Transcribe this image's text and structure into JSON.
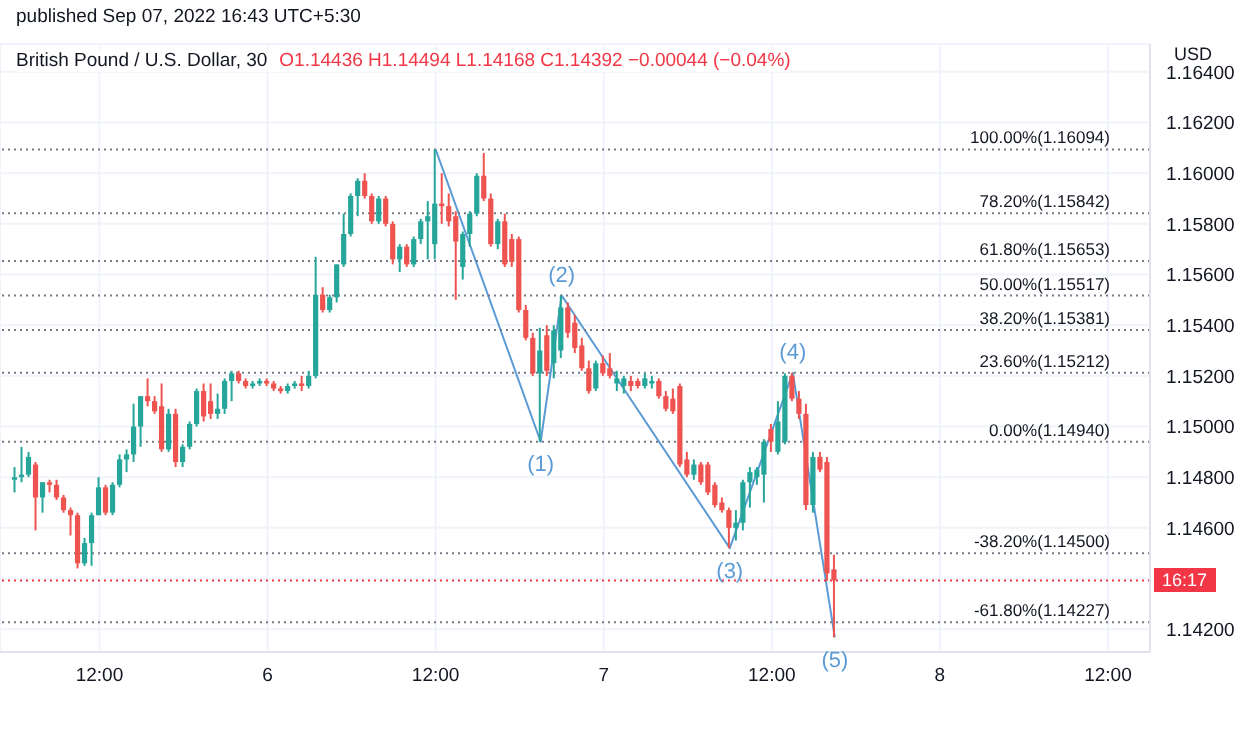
{
  "chart_data": {
    "type": "candlestick",
    "title": "British Pound / U.S. Dollar, 30",
    "subtitle": "O1.14436 H1.14494 L1.14168 C1.14392 −0.00044 (−0.04%)",
    "ylabel": "USD",
    "annotations": [
      "published Sep 07, 2022 16:43 UTC+5:30",
      {
        "text": "(1)",
        "x": "2022-09-06T19:30",
        "y": 1.1494
      },
      {
        "text": "(2)",
        "x": "2022-09-06T21:00",
        "y": 1.15517
      },
      {
        "text": "(3)",
        "x": "2022-09-07T09:00",
        "y": 1.1452
      },
      {
        "text": "(4)",
        "x": "2022-09-07T13:30",
        "y": 1.15212
      },
      {
        "text": "(5)",
        "x": "2022-09-07T16:30",
        "y": 1.14168
      },
      {
        "text": "16:17",
        "y": 1.14392
      }
    ],
    "x": [
      "2022-09-05T06:00",
      "2022-09-05T06:30",
      "2022-09-05T07:00",
      "2022-09-05T07:30",
      "2022-09-05T08:00",
      "2022-09-05T08:30",
      "2022-09-05T09:00",
      "2022-09-05T09:30",
      "2022-09-05T10:00",
      "2022-09-05T10:30",
      "2022-09-05T11:00",
      "2022-09-05T11:30",
      "2022-09-05T12:00",
      "2022-09-05T12:30",
      "2022-09-05T13:00",
      "2022-09-05T13:30",
      "2022-09-05T14:00",
      "2022-09-05T14:30",
      "2022-09-05T15:00",
      "2022-09-05T15:30",
      "2022-09-05T16:00",
      "2022-09-05T16:30",
      "2022-09-05T17:00",
      "2022-09-05T17:30",
      "2022-09-05T18:00",
      "2022-09-05T18:30",
      "2022-09-05T19:00",
      "2022-09-05T19:30",
      "2022-09-05T20:00",
      "2022-09-05T20:30",
      "2022-09-05T21:00",
      "2022-09-05T21:30",
      "2022-09-05T22:00",
      "2022-09-05T22:30",
      "2022-09-05T23:00",
      "2022-09-05T23:30",
      "2022-09-06T00:00",
      "2022-09-06T00:30",
      "2022-09-06T01:00",
      "2022-09-06T01:30",
      "2022-09-06T02:00",
      "2022-09-06T02:30",
      "2022-09-06T03:00",
      "2022-09-06T03:30",
      "2022-09-06T04:00",
      "2022-09-06T04:30",
      "2022-09-06T05:00",
      "2022-09-06T05:30",
      "2022-09-06T06:00",
      "2022-09-06T06:30",
      "2022-09-06T07:00",
      "2022-09-06T07:30",
      "2022-09-06T08:00",
      "2022-09-06T08:30",
      "2022-09-06T09:00",
      "2022-09-06T09:30",
      "2022-09-06T10:00",
      "2022-09-06T10:30",
      "2022-09-06T11:00",
      "2022-09-06T11:30",
      "2022-09-06T12:00",
      "2022-09-06T12:30",
      "2022-09-06T13:00",
      "2022-09-06T13:30",
      "2022-09-06T14:00",
      "2022-09-06T14:30",
      "2022-09-06T15:00",
      "2022-09-06T15:30",
      "2022-09-06T16:00",
      "2022-09-06T16:30",
      "2022-09-06T17:00",
      "2022-09-06T17:30",
      "2022-09-06T18:00",
      "2022-09-06T18:30",
      "2022-09-06T19:00",
      "2022-09-06T19:30",
      "2022-09-06T20:00",
      "2022-09-06T20:30",
      "2022-09-06T21:00",
      "2022-09-06T21:30",
      "2022-09-06T22:00",
      "2022-09-06T22:30",
      "2022-09-06T23:00",
      "2022-09-06T23:30",
      "2022-09-07T00:00",
      "2022-09-07T00:30",
      "2022-09-07T01:00",
      "2022-09-07T01:30",
      "2022-09-07T02:00",
      "2022-09-07T02:30",
      "2022-09-07T03:00",
      "2022-09-07T03:30",
      "2022-09-07T04:00",
      "2022-09-07T04:30",
      "2022-09-07T05:00",
      "2022-09-07T05:30",
      "2022-09-07T06:00",
      "2022-09-07T06:30",
      "2022-09-07T07:00",
      "2022-09-07T07:30",
      "2022-09-07T08:00",
      "2022-09-07T08:30",
      "2022-09-07T09:00",
      "2022-09-07T09:30",
      "2022-09-07T10:00",
      "2022-09-07T10:30",
      "2022-09-07T11:00",
      "2022-09-07T11:30",
      "2022-09-07T12:00",
      "2022-09-07T12:30",
      "2022-09-07T13:00",
      "2022-09-07T13:30",
      "2022-09-07T14:00",
      "2022-09-07T14:30",
      "2022-09-07T15:00",
      "2022-09-07T15:30",
      "2022-09-07T16:00",
      "2022-09-07T16:30"
    ],
    "ohlc": [
      [
        1.1479,
        1.1484,
        1.1474,
        1.148
      ],
      [
        1.148,
        1.1492,
        1.1478,
        1.1481
      ],
      [
        1.1481,
        1.149,
        1.148,
        1.1488
      ],
      [
        1.1485,
        1.1486,
        1.1459,
        1.1472
      ],
      [
        1.1472,
        1.1478,
        1.1466,
        1.1478
      ],
      [
        1.1478,
        1.1479,
        1.1474,
        1.1477
      ],
      [
        1.1477,
        1.1479,
        1.1471,
        1.1472
      ],
      [
        1.1472,
        1.1473,
        1.1466,
        1.1467
      ],
      [
        1.1467,
        1.1468,
        1.1457,
        1.1465
      ],
      [
        1.1465,
        1.1466,
        1.1444,
        1.1446
      ],
      [
        1.1446,
        1.1456,
        1.1445,
        1.1454
      ],
      [
        1.1454,
        1.1466,
        1.1445,
        1.1465
      ],
      [
        1.1465,
        1.148,
        1.1465,
        1.1476
      ],
      [
        1.1476,
        1.1477,
        1.1465,
        1.1466
      ],
      [
        1.1466,
        1.1478,
        1.1465,
        1.1477
      ],
      [
        1.1477,
        1.1489,
        1.1476,
        1.1487
      ],
      [
        1.1487,
        1.1491,
        1.1482,
        1.1489
      ],
      [
        1.1489,
        1.1509,
        1.1486,
        1.15
      ],
      [
        1.15,
        1.1512,
        1.1492,
        1.1512
      ],
      [
        1.1512,
        1.1519,
        1.1508,
        1.151
      ],
      [
        1.151,
        1.1512,
        1.1505,
        1.1506
      ],
      [
        1.1508,
        1.1517,
        1.149,
        1.1491
      ],
      [
        1.1491,
        1.1507,
        1.149,
        1.1505
      ],
      [
        1.1505,
        1.1507,
        1.1484,
        1.1486
      ],
      [
        1.1486,
        1.1493,
        1.1484,
        1.1492
      ],
      [
        1.1492,
        1.1502,
        1.1491,
        1.1501
      ],
      [
        1.1501,
        1.1515,
        1.15,
        1.1514
      ],
      [
        1.1514,
        1.1517,
        1.1502,
        1.1504
      ],
      [
        1.151,
        1.1517,
        1.1503,
        1.1505
      ],
      [
        1.1505,
        1.1513,
        1.1503,
        1.1507
      ],
      [
        1.1507,
        1.1519,
        1.1505,
        1.1518
      ],
      [
        1.1518,
        1.1522,
        1.151,
        1.1521
      ],
      [
        1.1521,
        1.1522,
        1.1517,
        1.1518
      ],
      [
        1.1518,
        1.1519,
        1.1515,
        1.1516
      ],
      [
        1.1516,
        1.1518,
        1.1515,
        1.1517
      ],
      [
        1.1517,
        1.1519,
        1.1516,
        1.1518
      ],
      [
        1.1518,
        1.1519,
        1.1516,
        1.1517
      ],
      [
        1.1517,
        1.1518,
        1.1514,
        1.1515
      ],
      [
        1.1515,
        1.1516,
        1.1513,
        1.1514
      ],
      [
        1.1514,
        1.1517,
        1.1513,
        1.1516
      ],
      [
        1.1516,
        1.1518,
        1.1515,
        1.1517
      ],
      [
        1.1517,
        1.152,
        1.1514,
        1.1516
      ],
      [
        1.1516,
        1.1522,
        1.1515,
        1.152
      ],
      [
        1.152,
        1.1567,
        1.1519,
        1.1552
      ],
      [
        1.1552,
        1.1555,
        1.1545,
        1.1546
      ],
      [
        1.1546,
        1.1552,
        1.1545,
        1.1551
      ],
      [
        1.1551,
        1.1564,
        1.1549,
        1.1564
      ],
      [
        1.1564,
        1.1584,
        1.1563,
        1.1576
      ],
      [
        1.1576,
        1.1592,
        1.1575,
        1.1591
      ],
      [
        1.1591,
        1.1598,
        1.1583,
        1.1597
      ],
      [
        1.1597,
        1.16,
        1.159,
        1.1591
      ],
      [
        1.1591,
        1.1592,
        1.158,
        1.1581
      ],
      [
        1.1581,
        1.1591,
        1.158,
        1.159
      ],
      [
        1.159,
        1.1591,
        1.1579,
        1.158
      ],
      [
        1.158,
        1.1581,
        1.1564,
        1.1566
      ],
      [
        1.1566,
        1.1572,
        1.1561,
        1.1571
      ],
      [
        1.1571,
        1.1572,
        1.1563,
        1.1564
      ],
      [
        1.1564,
        1.1575,
        1.1563,
        1.1574
      ],
      [
        1.1574,
        1.1582,
        1.1572,
        1.1581
      ],
      [
        1.1581,
        1.1589,
        1.1566,
        1.1583
      ],
      [
        1.1572,
        1.16094,
        1.1566,
        1.1588
      ],
      [
        1.1588,
        1.16,
        1.158,
        1.1587
      ],
      [
        1.1587,
        1.1592,
        1.1579,
        1.1581
      ],
      [
        1.1583,
        1.1585,
        1.155,
        1.1573
      ],
      [
        1.1563,
        1.1577,
        1.1558,
        1.1576
      ],
      [
        1.1576,
        1.1585,
        1.1571,
        1.1584
      ],
      [
        1.1584,
        1.16,
        1.1583,
        1.1599
      ],
      [
        1.1599,
        1.1608,
        1.1589,
        1.159
      ],
      [
        1.159,
        1.1592,
        1.1571,
        1.1572
      ],
      [
        1.1572,
        1.1582,
        1.157,
        1.1581
      ],
      [
        1.1581,
        1.1584,
        1.1563,
        1.1564
      ],
      [
        1.1574,
        1.1576,
        1.1563,
        1.1565
      ],
      [
        1.1574,
        1.1575,
        1.1545,
        1.1546
      ],
      [
        1.1546,
        1.1548,
        1.1534,
        1.1535
      ],
      [
        1.1535,
        1.1537,
        1.152,
        1.1521
      ],
      [
        1.1521,
        1.1539,
        1.1494,
        1.153
      ],
      [
        1.1536,
        1.154,
        1.152,
        1.1522
      ],
      [
        1.1525,
        1.154,
        1.1519,
        1.1538
      ],
      [
        1.153,
        1.15517,
        1.1527,
        1.1547
      ],
      [
        1.1547,
        1.1549,
        1.1535,
        1.1537
      ],
      [
        1.1541,
        1.1544,
        1.1529,
        1.1531
      ],
      [
        1.1532,
        1.1535,
        1.1522,
        1.1523
      ],
      [
        1.1523,
        1.1526,
        1.1513,
        1.1514
      ],
      [
        1.1515,
        1.1526,
        1.1514,
        1.1525
      ],
      [
        1.1525,
        1.1528,
        1.152,
        1.1521
      ],
      [
        1.1523,
        1.1529,
        1.1519,
        1.152
      ],
      [
        1.1517,
        1.1522,
        1.1514,
        1.1519
      ],
      [
        1.1516,
        1.152,
        1.1513,
        1.1519
      ],
      [
        1.1518,
        1.152,
        1.1514,
        1.1516
      ],
      [
        1.1518,
        1.1519,
        1.1515,
        1.1516
      ],
      [
        1.1516,
        1.1521,
        1.1515,
        1.1519
      ],
      [
        1.1517,
        1.152,
        1.1515,
        1.1518
      ],
      [
        1.1518,
        1.1519,
        1.1511,
        1.1512
      ],
      [
        1.1512,
        1.1514,
        1.1506,
        1.1507
      ],
      [
        1.1511,
        1.1515,
        1.1505,
        1.1506
      ],
      [
        1.1516,
        1.1517,
        1.1484,
        1.1485
      ],
      [
        1.1487,
        1.149,
        1.148,
        1.1481
      ],
      [
        1.1481,
        1.1487,
        1.1479,
        1.1485
      ],
      [
        1.1485,
        1.1486,
        1.1477,
        1.1478
      ],
      [
        1.1485,
        1.1486,
        1.1473,
        1.1474
      ],
      [
        1.1477,
        1.1478,
        1.1468,
        1.1469
      ],
      [
        1.147,
        1.1472,
        1.1466,
        1.1467
      ],
      [
        1.1467,
        1.1468,
        1.1452,
        1.146
      ],
      [
        1.146,
        1.1467,
        1.1455,
        1.1462
      ],
      [
        1.1462,
        1.1479,
        1.1459,
        1.1478
      ],
      [
        1.1478,
        1.1484,
        1.1468,
        1.1482
      ],
      [
        1.148,
        1.1484,
        1.1477,
        1.1483
      ],
      [
        1.1481,
        1.1495,
        1.147,
        1.1494
      ],
      [
        1.1499,
        1.1501,
        1.149,
        1.1494
      ],
      [
        1.149,
        1.151,
        1.1489,
        1.1502
      ],
      [
        1.1494,
        1.1521,
        1.1493,
        1.152
      ],
      [
        1.152,
        1.15212,
        1.151,
        1.1511
      ],
      [
        1.1511,
        1.1514,
        1.1503,
        1.1505
      ],
      [
        1.1505,
        1.1509,
        1.1467,
        1.1469
      ],
      [
        1.1469,
        1.149,
        1.1466,
        1.1488
      ],
      [
        1.1488,
        1.149,
        1.1482,
        1.1483
      ],
      [
        1.1486,
        1.1488,
        1.1439,
        1.1442
      ],
      [
        1.14436,
        1.14494,
        1.14168,
        1.14392
      ]
    ],
    "series": [
      {
        "type": "line",
        "x": [
          "2022-09-06T12:00",
          "2022-09-06T19:30",
          "2022-09-06T21:00",
          "2022-09-07T09:00",
          "2022-09-07T13:30",
          "2022-09-07T16:30"
        ],
        "values": [
          1.16094,
          1.1494,
          1.15517,
          1.1452,
          1.15212,
          1.14168
        ],
        "color": "#5b9bd5"
      }
    ],
    "xlim": [
      "2022-09-05T04:54",
      "2022-09-08T15:00"
    ],
    "xticks": [
      {
        "value": "2022-09-05T12:00",
        "label": "12:00"
      },
      {
        "value": "2022-09-06T00:00",
        "label": "6"
      },
      {
        "value": "2022-09-06T12:00",
        "label": "12:00"
      },
      {
        "value": "2022-09-07T00:00",
        "label": "7"
      },
      {
        "value": "2022-09-07T12:00",
        "label": "12:00"
      },
      {
        "value": "2022-09-08T00:00",
        "label": "8"
      },
      {
        "value": "2022-09-08T12:00",
        "label": "12:00"
      }
    ],
    "ylim": [
      1.1411,
      1.1651
    ],
    "yticks": [
      {
        "value": 1.142,
        "label": "1.14200"
      },
      {
        "value": 1.144,
        "label": null
      },
      {
        "value": 1.146,
        "label": "1.14600"
      },
      {
        "value": 1.148,
        "label": "1.14800"
      },
      {
        "value": 1.15,
        "label": "1.15000"
      },
      {
        "value": 1.152,
        "label": "1.15200"
      },
      {
        "value": 1.154,
        "label": "1.15400"
      },
      {
        "value": 1.156,
        "label": "1.15600"
      },
      {
        "value": 1.158,
        "label": "1.15800"
      },
      {
        "value": 1.16,
        "label": "1.16000"
      },
      {
        "value": 1.162,
        "label": "1.16200"
      },
      {
        "value": 1.164,
        "label": "1.16400"
      }
    ],
    "ref_lines": [
      {
        "axis": "y",
        "value": 1.16094,
        "label": "100.00%(1.16094)",
        "color": "#787b86",
        "line_style": "dotted"
      },
      {
        "axis": "y",
        "value": 1.15842,
        "label": "78.20%(1.15842)",
        "color": "#787b86",
        "line_style": "dotted"
      },
      {
        "axis": "y",
        "value": 1.15653,
        "label": "61.80%(1.15653)",
        "color": "#787b86",
        "line_style": "dotted"
      },
      {
        "axis": "y",
        "value": 1.15517,
        "label": "50.00%(1.15517)",
        "color": "#787b86",
        "line_style": "dotted"
      },
      {
        "axis": "y",
        "value": 1.15381,
        "label": "38.20%(1.15381)",
        "color": "#787b86",
        "line_style": "dotted"
      },
      {
        "axis": "y",
        "value": 1.15212,
        "label": "23.60%(1.15212)",
        "color": "#787b86",
        "line_style": "dotted"
      },
      {
        "axis": "y",
        "value": 1.1494,
        "label": "0.00%(1.14940)",
        "color": "#787b86",
        "line_style": "dotted"
      },
      {
        "axis": "y",
        "value": 1.145,
        "label": "-38.20%(1.14500)",
        "color": "#787b86",
        "line_style": "dotted"
      },
      {
        "axis": "y",
        "value": 1.14227,
        "label": "-61.80%(1.14227)",
        "color": "#787b86",
        "line_style": "dotted"
      },
      {
        "axis": "y",
        "value": 1.14392,
        "color": "#f23645",
        "line_style": "dotted"
      }
    ],
    "grid": true
  }
}
